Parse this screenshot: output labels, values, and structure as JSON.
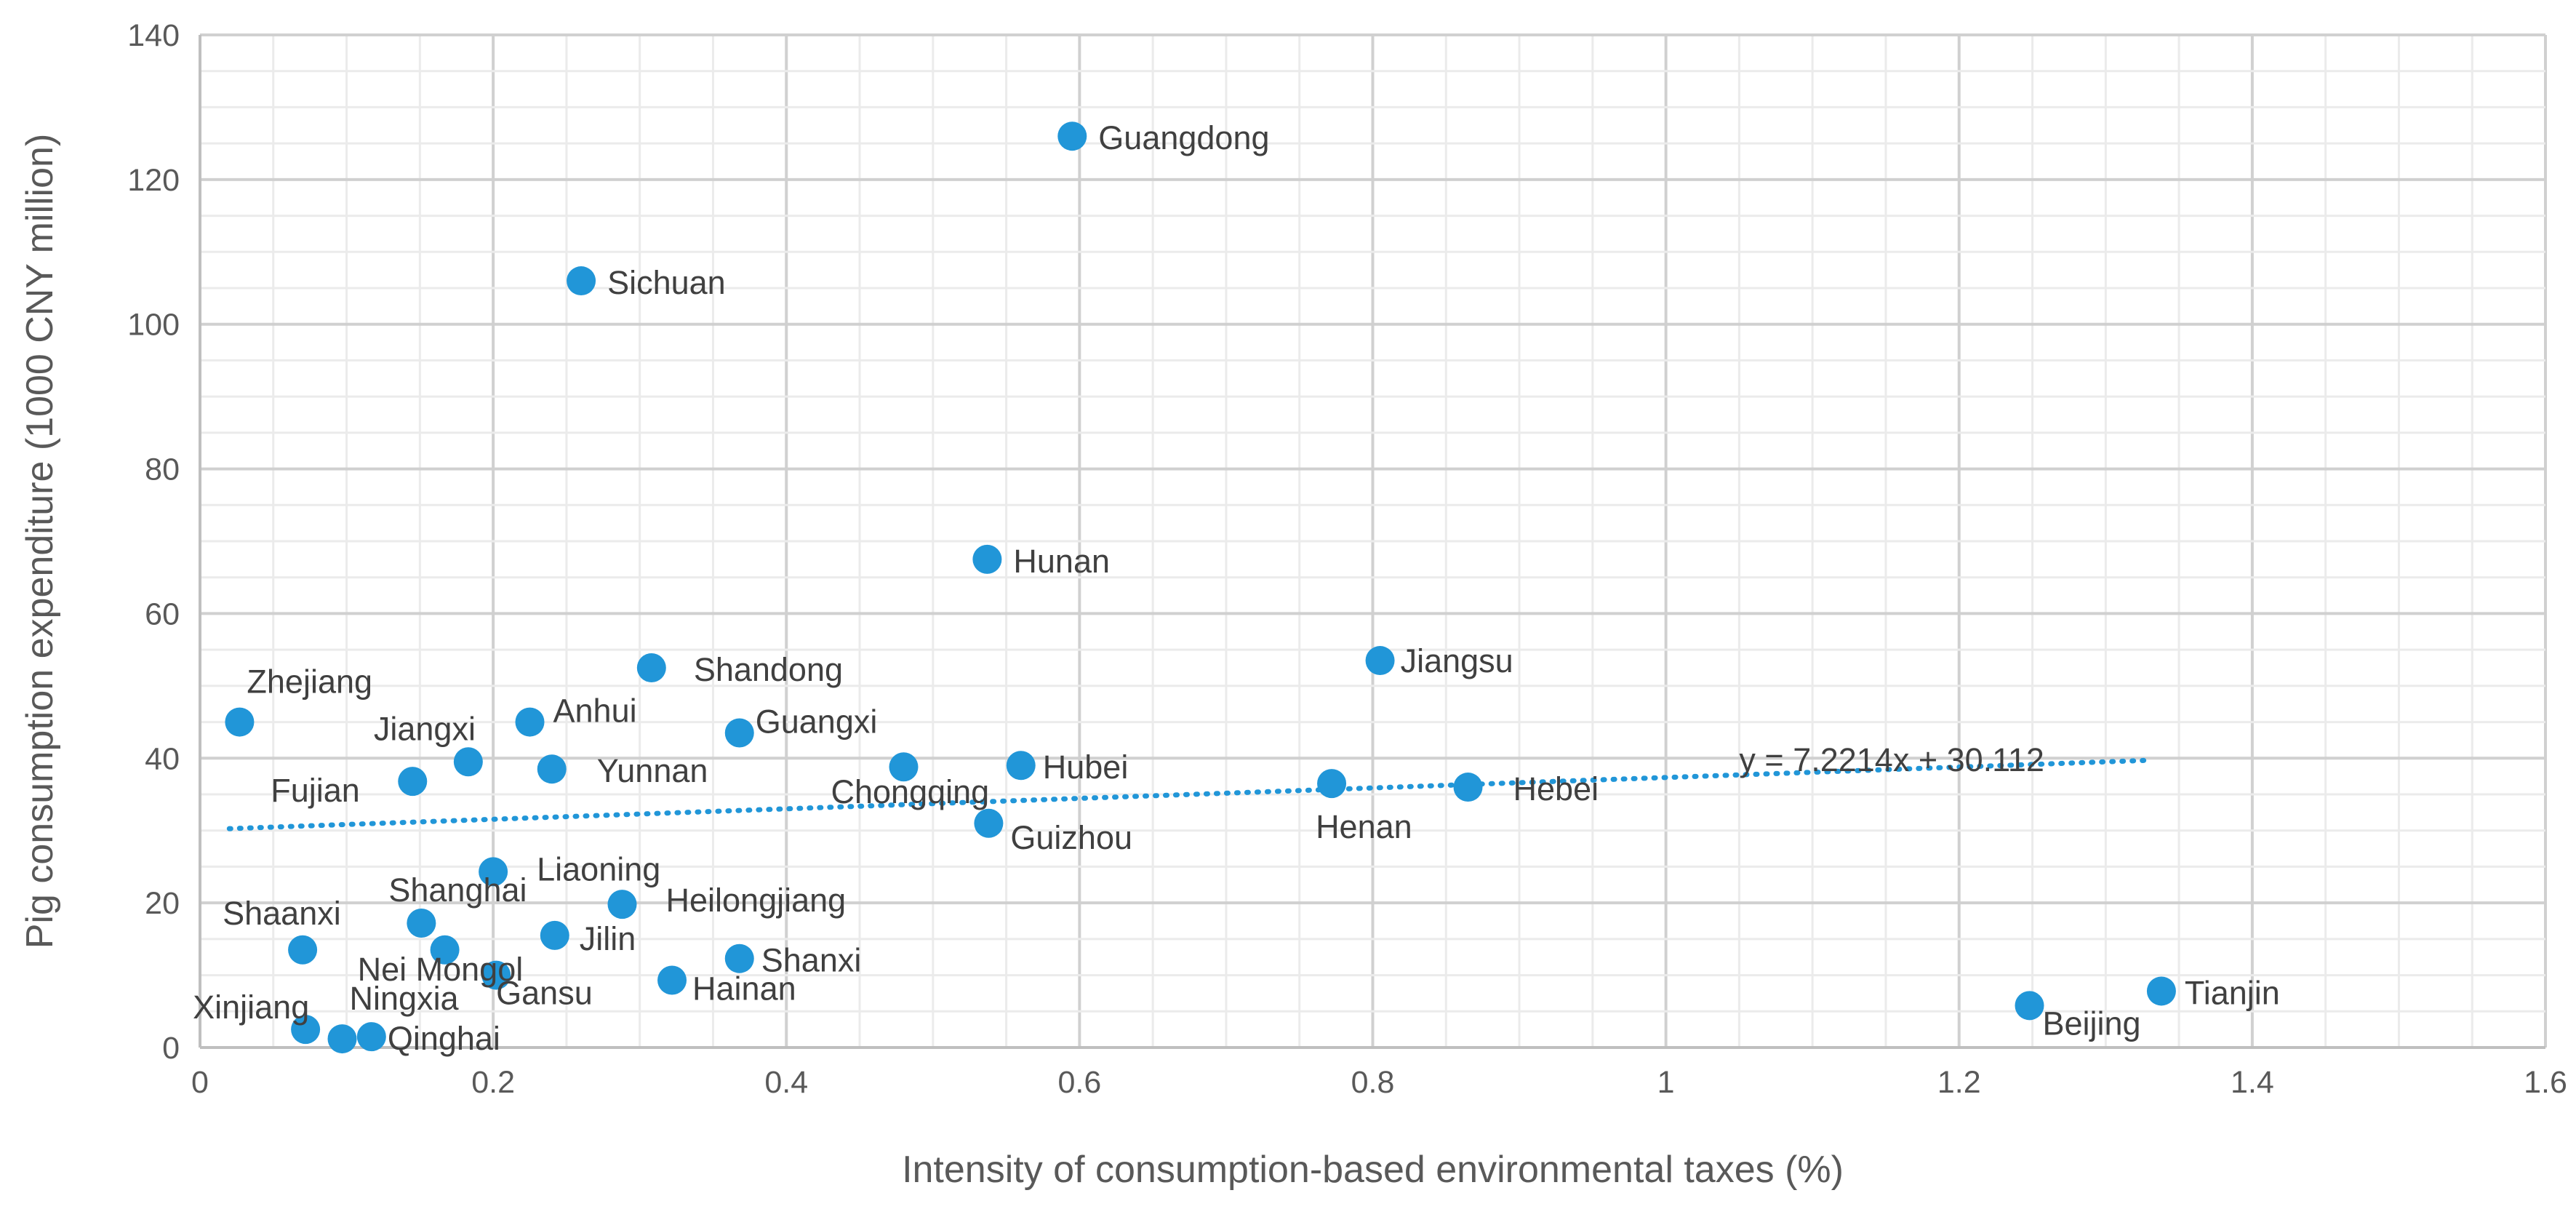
{
  "chart_data": {
    "type": "scatter",
    "title": "",
    "xlabel": "Intensity of consumption-based environmental taxes (%)",
    "ylabel": "Pig consumption expenditure (1000 CNY million)",
    "xlim": [
      0,
      1.6
    ],
    "ylim": [
      0,
      140
    ],
    "x_ticks": [
      0,
      0.2,
      0.4,
      0.6,
      0.8,
      1,
      1.2,
      1.4,
      1.6
    ],
    "x_tick_labels": [
      "0",
      "0.2",
      "0.4",
      "0.6",
      "0.8",
      "1",
      "1.2",
      "1.4",
      "1.6"
    ],
    "y_ticks": [
      0,
      20,
      40,
      60,
      80,
      100,
      120,
      140
    ],
    "y_tick_labels": [
      "0",
      "20",
      "40",
      "60",
      "80",
      "100",
      "120",
      "140"
    ],
    "grid": true,
    "marker_color": "#2196d8",
    "points": [
      {
        "label": "Guangdong",
        "x": 0.595,
        "y": 126.0
      },
      {
        "label": "Sichuan",
        "x": 0.26,
        "y": 106.0
      },
      {
        "label": "Hunan",
        "x": 0.537,
        "y": 67.5
      },
      {
        "label": "Jiangsu",
        "x": 0.805,
        "y": 53.5
      },
      {
        "label": "Shandong",
        "x": 0.308,
        "y": 52.5
      },
      {
        "label": "Zhejiang",
        "x": 0.027,
        "y": 45.0
      },
      {
        "label": "Anhui",
        "x": 0.225,
        "y": 45.0
      },
      {
        "label": "Guangxi",
        "x": 0.368,
        "y": 43.5
      },
      {
        "label": "Jiangxi",
        "x": 0.183,
        "y": 39.5
      },
      {
        "label": "Yunnan",
        "x": 0.24,
        "y": 38.5
      },
      {
        "label": "Chongqing",
        "x": 0.48,
        "y": 38.8
      },
      {
        "label": "Hubei",
        "x": 0.56,
        "y": 39.0
      },
      {
        "label": "Fujian",
        "x": 0.145,
        "y": 36.8
      },
      {
        "label": "Henan",
        "x": 0.772,
        "y": 36.5
      },
      {
        "label": "Hebei",
        "x": 0.865,
        "y": 36.0
      },
      {
        "label": "Guizhou",
        "x": 0.538,
        "y": 31.0
      },
      {
        "label": "Liaoning",
        "x": 0.2,
        "y": 24.3
      },
      {
        "label": "Heilongjiang",
        "x": 0.288,
        "y": 19.8
      },
      {
        "label": "Shanghai",
        "x": 0.151,
        "y": 17.2
      },
      {
        "label": "Jilin",
        "x": 0.242,
        "y": 15.5
      },
      {
        "label": "Shaanxi",
        "x": 0.07,
        "y": 13.5
      },
      {
        "label": "Nei Mongol",
        "x": 0.167,
        "y": 13.5
      },
      {
        "label": "Shanxi",
        "x": 0.368,
        "y": 12.3
      },
      {
        "label": "Gansu",
        "x": 0.202,
        "y": 10.0
      },
      {
        "label": "Hainan",
        "x": 0.322,
        "y": 9.3
      },
      {
        "label": "Xinjiang",
        "x": 0.072,
        "y": 2.5
      },
      {
        "label": "Ningxia",
        "x": 0.097,
        "y": 1.2
      },
      {
        "label": "Qinghai",
        "x": 0.117,
        "y": 1.5
      },
      {
        "label": "Beijing",
        "x": 1.248,
        "y": 5.8
      },
      {
        "label": "Tianjin",
        "x": 1.338,
        "y": 7.8
      }
    ],
    "trendline": {
      "type": "linear",
      "slope": 7.2214,
      "intercept": 30.112,
      "x_range": [
        0.02,
        1.33
      ],
      "equation": "y = 7.2214x + 30.112",
      "style": "dotted"
    }
  }
}
